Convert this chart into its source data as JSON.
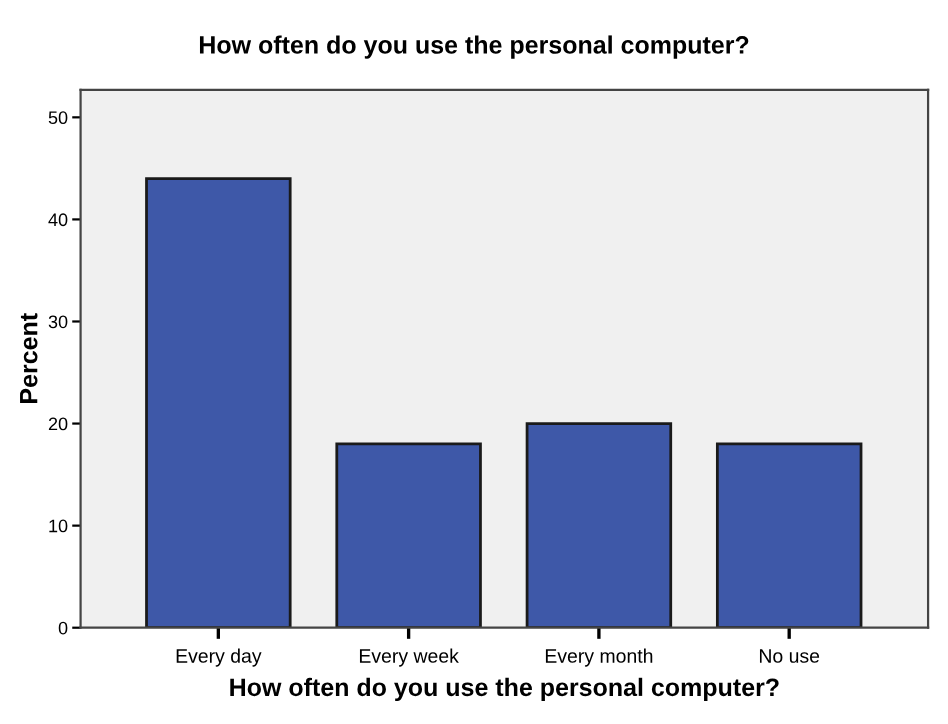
{
  "chart_data": {
    "type": "bar",
    "title": "How often do you use the personal computer?",
    "xlabel": "How often do you use the personal computer?",
    "ylabel": "Percent",
    "categories": [
      "Every day",
      "Every week",
      "Every month",
      "No use"
    ],
    "values": [
      44,
      18,
      20,
      18
    ],
    "color": "#3e58a8",
    "ylim": [
      0,
      52.7
    ],
    "yticks": [
      0,
      10,
      20,
      30,
      40,
      50
    ],
    "grid": false,
    "legend": false
  }
}
